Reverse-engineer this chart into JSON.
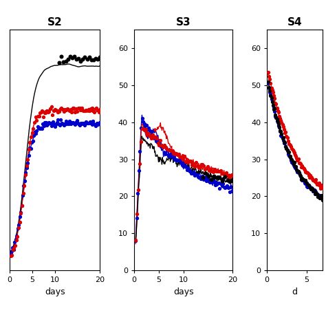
{
  "titles": [
    "S2",
    "S3",
    "S4"
  ],
  "panel0": {
    "xlim": [
      0,
      20
    ],
    "xticks": [
      0,
      5,
      10,
      20
    ],
    "xlabel": "days",
    "show_yaxis": false
  },
  "panel1": {
    "xlim": [
      0,
      20
    ],
    "ylim": [
      0,
      65
    ],
    "yticks": [
      0,
      10,
      20,
      30,
      40,
      50,
      60
    ],
    "xticks": [
      0,
      5,
      10,
      20
    ],
    "xlabel": "days",
    "show_yaxis": true
  },
  "panel2": {
    "xlim": [
      0,
      7
    ],
    "ylim": [
      0,
      65
    ],
    "yticks": [
      0,
      10,
      20,
      30,
      40,
      50,
      60
    ],
    "xticks": [
      0,
      5
    ],
    "xlabel": "d",
    "show_yaxis": true
  },
  "lw_line": 1.0,
  "ms_dot": 2.8,
  "colors": {
    "black": "#000000",
    "red": "#dd0000",
    "blue": "#0000cc"
  }
}
